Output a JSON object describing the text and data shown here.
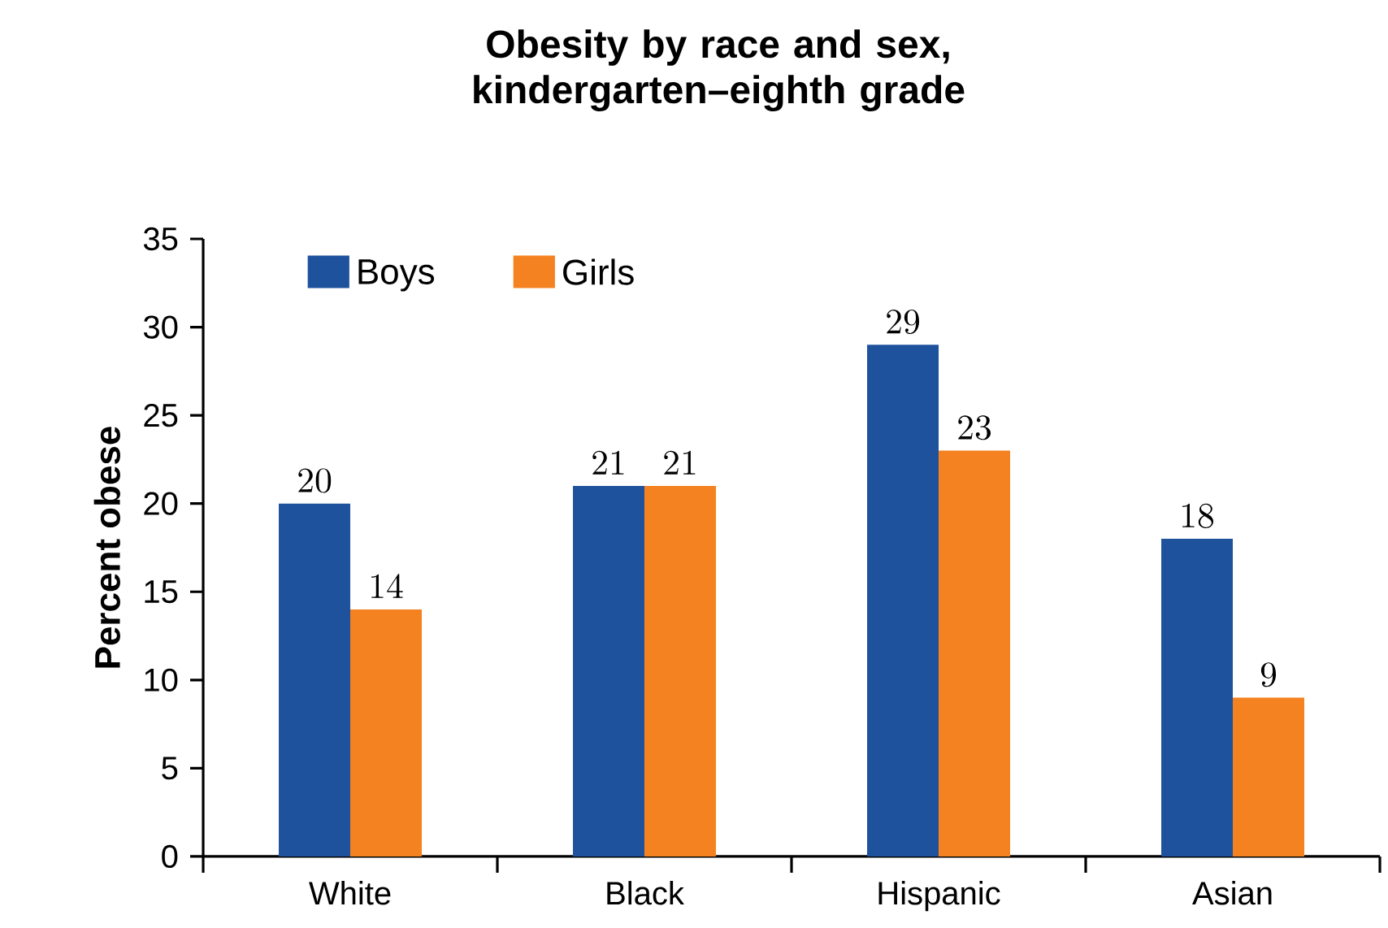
{
  "chart_data": {
    "type": "bar",
    "title": "Obesity by race and sex, kindergarten–eighth grade",
    "ylabel": "Percent obese",
    "categories": [
      "White",
      "Black",
      "Hispanic",
      "Asian"
    ],
    "series": [
      {
        "name": "Boys",
        "color": "#1f529c",
        "values": [
          20,
          21,
          29,
          18
        ]
      },
      {
        "name": "Girls",
        "color": "#f58220",
        "values": [
          14,
          21,
          23,
          9
        ]
      }
    ],
    "ylim": [
      0,
      35
    ],
    "yticks": [
      0,
      5,
      10,
      15,
      20,
      25,
      30,
      35
    ],
    "data_labels": true,
    "legend": "top left",
    "grid": false
  }
}
